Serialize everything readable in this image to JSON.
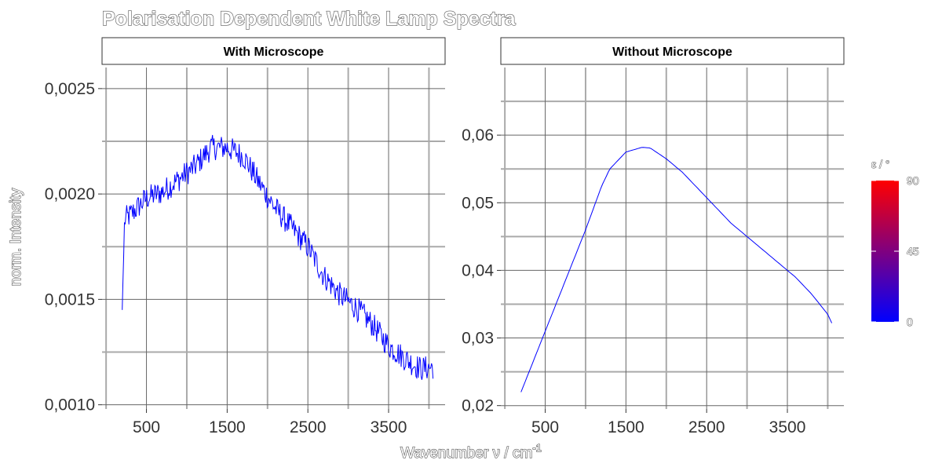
{
  "chart_data": {
    "type": "line",
    "title": "Polarisation Dependent White Lamp Spectra",
    "xlabel": "Wavenumber ν / cm",
    "xlabel_superscript": "-1",
    "ylabel": "norm. Intensity",
    "grid": true,
    "legend": {
      "title": "ε / °",
      "position": "right",
      "type": "colorbar",
      "range": [
        0,
        90
      ],
      "ticks": [
        "0",
        "45",
        "90"
      ],
      "colors": [
        "#0000ff",
        "#ff0000"
      ]
    },
    "line_color": "#0000ff",
    "panels": [
      {
        "title": "With Microscope",
        "xlim": [
          -50,
          4200
        ],
        "ylim": [
          0.00098,
          0.0026
        ],
        "x_ticks": [
          500,
          1500,
          2500,
          3500
        ],
        "x_tick_labels": [
          "500",
          "1500",
          "2500",
          "3500"
        ],
        "y_ticks": [
          0.001,
          0.0015,
          0.002,
          0.0025
        ],
        "y_tick_labels": [
          "0,0010",
          "0,0015",
          "0,0020",
          "0,0025"
        ],
        "noise": 6e-05,
        "series": {
          "x": [
            200,
            230,
            300,
            500,
            700,
            900,
            1100,
            1300,
            1500,
            1700,
            1900,
            2100,
            2300,
            2500,
            2700,
            2900,
            3100,
            3300,
            3500,
            3700,
            3900,
            4050
          ],
          "y": [
            0.00145,
            0.00188,
            0.0019,
            0.00198,
            0.00201,
            0.00207,
            0.00213,
            0.00222,
            0.00222,
            0.00218,
            0.00205,
            0.00193,
            0.00184,
            0.00175,
            0.00161,
            0.00152,
            0.00146,
            0.00138,
            0.00128,
            0.00122,
            0.00117,
            0.00118
          ]
        }
      },
      {
        "title": "Without Microscope",
        "xlim": [
          -50,
          4200
        ],
        "ylim": [
          0.0195,
          0.07
        ],
        "x_ticks": [
          500,
          1500,
          2500,
          3500
        ],
        "x_tick_labels": [
          "500",
          "1500",
          "2500",
          "3500"
        ],
        "y_ticks": [
          0.02,
          0.03,
          0.04,
          0.05,
          0.06
        ],
        "y_tick_labels": [
          "0,02",
          "0,03",
          "0,04",
          "0,05",
          "0,06"
        ],
        "noise": 0,
        "series": {
          "x": [
            200,
            500,
            800,
            1000,
            1200,
            1300,
            1500,
            1700,
            1800,
            2000,
            2200,
            2400,
            2600,
            2800,
            3000,
            3200,
            3400,
            3600,
            3800,
            4000,
            4050
          ],
          "y": [
            0.022,
            0.031,
            0.04,
            0.046,
            0.0525,
            0.055,
            0.0575,
            0.0582,
            0.0581,
            0.0565,
            0.0545,
            0.052,
            0.0495,
            0.047,
            0.045,
            0.043,
            0.041,
            0.039,
            0.0365,
            0.0335,
            0.0322
          ]
        }
      }
    ]
  }
}
